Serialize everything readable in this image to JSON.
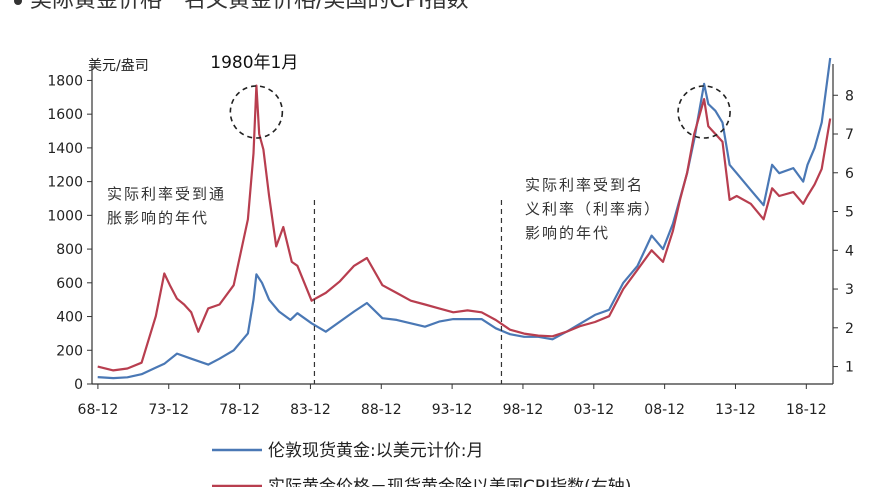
{
  "header": {
    "title": "美际黄金价格－名义黄金价格/美国的CPI指数"
  },
  "chart_data": {
    "type": "line",
    "title": "美际黄金价格－名义黄金价格/美国的CPI指数",
    "y_left_label": "美元/盎司",
    "y_left_ticks": [
      0,
      200,
      400,
      600,
      800,
      1000,
      1200,
      1400,
      1600,
      1800
    ],
    "y_right_ticks": [
      1,
      2,
      3,
      4,
      5,
      6,
      7,
      8
    ],
    "ylim_left": [
      0,
      1850
    ],
    "ylim_right": [
      0.55,
      8.6
    ],
    "x_ticks": [
      "68-12",
      "73-12",
      "78-12",
      "83-12",
      "88-12",
      "93-12",
      "98-12",
      "03-12",
      "08-12",
      "13-12",
      "18-12"
    ],
    "xlim": [
      1968.5,
      2020.8
    ],
    "grid": false,
    "annotations": {
      "peak_label": "1980年1月",
      "note_left": [
        "实际利率受到通",
        "胀影响的年代"
      ],
      "note_right": [
        "实际利率受到名",
        "义利率（利率病）",
        "影响的年代"
      ],
      "peak_circles": [
        1980.1,
        2011.7
      ],
      "divider_years": [
        1984.2,
        1997.4
      ]
    },
    "series": [
      {
        "name": "伦敦现货黄金:以美元计价:月",
        "axis": "left",
        "color": "#4a78b5",
        "x": [
          1968.9,
          1970.0,
          1971.0,
          1972.0,
          1973.0,
          1973.6,
          1974.5,
          1975.5,
          1976.7,
          1977.5,
          1978.5,
          1979.5,
          1979.9,
          1980.1,
          1980.5,
          1981.0,
          1981.7,
          1982.5,
          1983.0,
          1984.0,
          1985.0,
          1986.0,
          1987.0,
          1987.9,
          1989.0,
          1990.0,
          1991.0,
          1992.0,
          1993.0,
          1994.0,
          1995.0,
          1996.0,
          1997.0,
          1998.0,
          1999.0,
          2000.0,
          2001.0,
          2002.0,
          2003.0,
          2004.0,
          2005.0,
          2006.0,
          2007.0,
          2008.0,
          2008.8,
          2009.5,
          2010.0,
          2010.5,
          2011.0,
          2011.7,
          2012.0,
          2012.5,
          2013.0,
          2013.5,
          2014.0,
          2015.0,
          2015.9,
          2016.5,
          2017.0,
          2018.0,
          2018.7,
          2019.0,
          2019.5,
          2020.0,
          2020.6
        ],
        "y": [
          41,
          35,
          40,
          58,
          97,
          120,
          180,
          150,
          115,
          150,
          200,
          300,
          500,
          650,
          600,
          500,
          430,
          380,
          420,
          360,
          310,
          370,
          430,
          480,
          390,
          380,
          360,
          340,
          370,
          385,
          385,
          385,
          330,
          295,
          280,
          280,
          265,
          310,
          360,
          410,
          440,
          600,
          700,
          880,
          800,
          950,
          1100,
          1250,
          1450,
          1780,
          1660,
          1620,
          1550,
          1300,
          1250,
          1150,
          1060,
          1300,
          1250,
          1280,
          1200,
          1300,
          1400,
          1550,
          1950
        ]
      },
      {
        "name": "实际黄金价格－现货黄金除以美国CPI指数(右轴)",
        "axis": "right",
        "color": "#b83e4f",
        "x": [
          1968.9,
          1970.0,
          1971.0,
          1972.0,
          1973.0,
          1973.6,
          1974.0,
          1974.5,
          1975.0,
          1975.5,
          1976.0,
          1976.7,
          1977.5,
          1978.5,
          1979.5,
          1979.9,
          1980.1,
          1980.3,
          1980.6,
          1981.0,
          1981.5,
          1982.0,
          1982.6,
          1983.0,
          1984.0,
          1985.0,
          1986.0,
          1987.0,
          1987.9,
          1989.0,
          1990.0,
          1991.0,
          1992.0,
          1993.0,
          1994.0,
          1995.0,
          1996.0,
          1997.0,
          1998.0,
          1999.0,
          2000.0,
          2001.0,
          2002.0,
          2003.0,
          2004.0,
          2005.0,
          2006.0,
          2007.0,
          2008.0,
          2008.8,
          2009.5,
          2010.0,
          2010.5,
          2011.0,
          2011.7,
          2012.0,
          2012.5,
          2013.0,
          2013.5,
          2014.0,
          2015.0,
          2015.9,
          2016.5,
          2017.0,
          2018.0,
          2018.7,
          2019.0,
          2019.5,
          2020.0,
          2020.6
        ],
        "y": [
          1.0,
          0.9,
          0.95,
          1.1,
          2.3,
          3.4,
          3.1,
          2.75,
          2.6,
          2.4,
          1.9,
          2.5,
          2.6,
          3.1,
          4.8,
          6.5,
          8.25,
          7.0,
          6.6,
          5.4,
          4.1,
          4.6,
          3.7,
          3.6,
          2.7,
          2.9,
          3.2,
          3.6,
          3.8,
          3.1,
          2.9,
          2.7,
          2.6,
          2.5,
          2.4,
          2.45,
          2.4,
          2.2,
          1.95,
          1.85,
          1.8,
          1.78,
          1.9,
          2.05,
          2.15,
          2.3,
          3.0,
          3.5,
          4.0,
          3.7,
          4.5,
          5.3,
          6.0,
          7.0,
          7.9,
          7.2,
          7.0,
          6.8,
          5.3,
          5.4,
          5.2,
          4.8,
          5.6,
          5.4,
          5.5,
          5.2,
          5.4,
          5.7,
          6.1,
          7.4
        ]
      }
    ]
  }
}
